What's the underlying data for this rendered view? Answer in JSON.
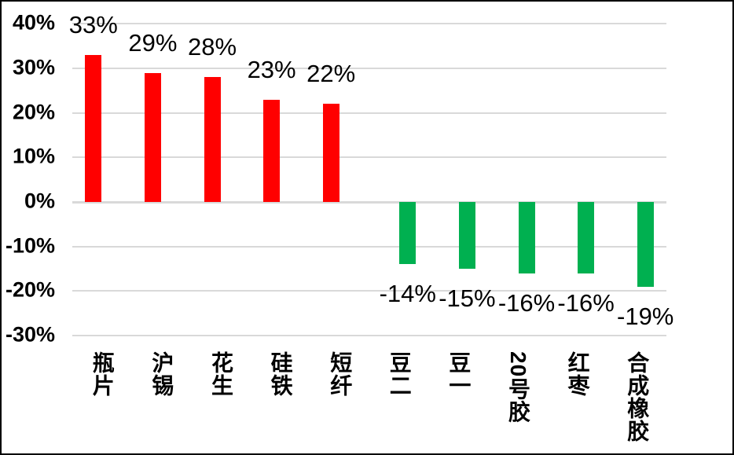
{
  "chart_data": {
    "type": "bar",
    "title": "",
    "categories": [
      "瓶片",
      "沪锡",
      "花生",
      "硅铁",
      "短纤",
      "豆二",
      "豆一",
      "20号胶",
      "红枣",
      "合成橡胶"
    ],
    "values": [
      33,
      29,
      28,
      23,
      22,
      -14,
      -15,
      -16,
      -16,
      -19
    ],
    "data_labels": [
      "33%",
      "29%",
      "28%",
      "23%",
      "22%",
      "-14%",
      "-15%",
      "-16%",
      "-16%",
      "-19%"
    ],
    "y_tick_labels": [
      "40%",
      "30%",
      "20%",
      "10%",
      "0%",
      "-10%",
      "-20%",
      "-30%"
    ],
    "y_tick_values": [
      40,
      30,
      20,
      10,
      0,
      -10,
      -20,
      -30
    ],
    "ylim": [
      -30,
      40
    ],
    "xlabel": "",
    "ylabel": "",
    "grid": true,
    "legend_position": "none",
    "label_position": "outside-end",
    "category_label_orientation": "vertical",
    "colors": {
      "positive": "#FF0000",
      "negative": "#00B050",
      "gridline": "#D9D9D9",
      "text": "#000000",
      "background": "#FFFFFF",
      "frame_border": "#000000"
    }
  }
}
